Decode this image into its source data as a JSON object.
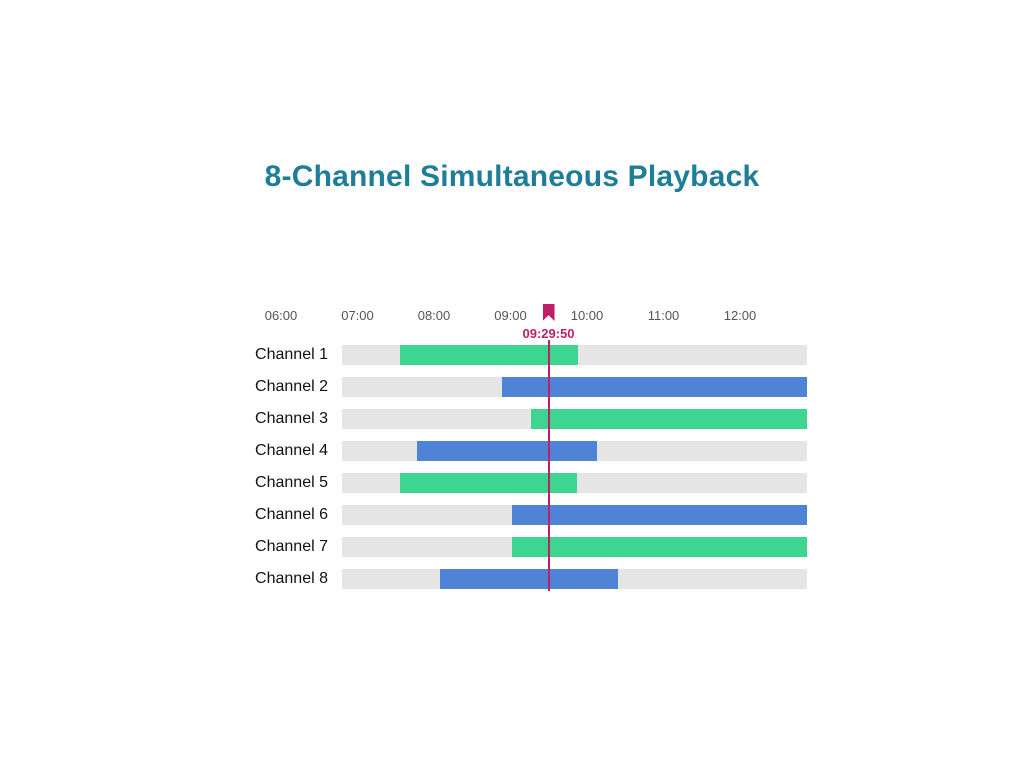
{
  "title": "8-Channel Simultaneous Playback",
  "colors": {
    "title": "#1e7e98",
    "green": "#3ed492",
    "blue": "#4e83d6",
    "track": "#e5e5e5",
    "playhead": "#c01e66",
    "axis_text": "#555555",
    "label_text": "#111111"
  },
  "chart_data": {
    "type": "bar",
    "variant": "gantt-timeline",
    "title": "8-Channel Simultaneous Playback",
    "xlabel": "",
    "ylabel": "",
    "x_ticks": [
      "06:00",
      "07:00",
      "08:00",
      "09:00",
      "10:00",
      "11:00",
      "12:00"
    ],
    "window": {
      "start": "06:48",
      "end": "12:53"
    },
    "grid": false,
    "legend": false,
    "playhead": {
      "time": "09:29:50"
    },
    "rows": [
      {
        "label": "Channel 1",
        "start": "07:33",
        "end": "09:53",
        "color": "green",
        "clipped_right": false
      },
      {
        "label": "Channel 2",
        "start": "08:53",
        "end": "12:53",
        "color": "blue",
        "clipped_right": true
      },
      {
        "label": "Channel 3",
        "start": "09:16",
        "end": "12:53",
        "color": "green",
        "clipped_right": true
      },
      {
        "label": "Channel 4",
        "start": "07:47",
        "end": "10:08",
        "color": "blue",
        "clipped_right": false
      },
      {
        "label": "Channel 5",
        "start": "07:33",
        "end": "09:52",
        "color": "green",
        "clipped_right": false
      },
      {
        "label": "Channel 6",
        "start": "09:01",
        "end": "12:53",
        "color": "blue",
        "clipped_right": true
      },
      {
        "label": "Channel 7",
        "start": "09:01",
        "end": "12:53",
        "color": "green",
        "clipped_right": true
      },
      {
        "label": "Channel 8",
        "start": "08:05",
        "end": "10:24",
        "color": "blue",
        "clipped_right": false
      }
    ]
  }
}
